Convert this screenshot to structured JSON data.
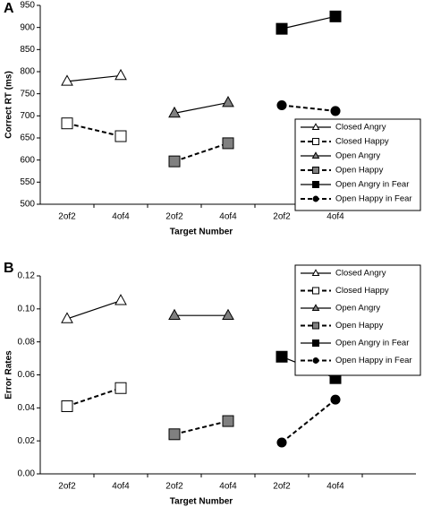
{
  "chart_data": [
    {
      "type": "line",
      "panel": "A",
      "ylabel": "Correct RT (ms)",
      "xlabel": "Target Number",
      "categories": [
        "2of2",
        "4of4",
        "2of2",
        "4of4",
        "2of2",
        "4of4"
      ],
      "ylim": [
        500,
        950
      ],
      "yticks": [
        500,
        550,
        600,
        650,
        700,
        750,
        800,
        850,
        900,
        950
      ],
      "legend": "lower right",
      "series": [
        {
          "name": "Closed Angry",
          "color": "#000000",
          "fill": "#ffffff",
          "marker": "triangle",
          "dash": false,
          "values": [
            778,
            791,
            null,
            null,
            null,
            null
          ]
        },
        {
          "name": "Closed Happy",
          "color": "#000000",
          "fill": "#ffffff",
          "marker": "square",
          "dash": true,
          "values": [
            683,
            654,
            null,
            null,
            null,
            null
          ]
        },
        {
          "name": "Open Angry",
          "color": "#000000",
          "fill": "#808080",
          "marker": "triangle",
          "dash": false,
          "values": [
            null,
            null,
            706,
            730,
            null,
            null
          ]
        },
        {
          "name": "Open Happy",
          "color": "#000000",
          "fill": "#808080",
          "marker": "square",
          "dash": true,
          "values": [
            null,
            null,
            597,
            638,
            null,
            null
          ]
        },
        {
          "name": "Open Angry in Fear",
          "color": "#000000",
          "fill": "#000000",
          "marker": "square",
          "dash": false,
          "values": [
            null,
            null,
            null,
            null,
            897,
            925
          ]
        },
        {
          "name": "Open Happy in Fear",
          "color": "#000000",
          "fill": "#000000",
          "marker": "circle",
          "dash": true,
          "values": [
            null,
            null,
            null,
            null,
            724,
            711
          ]
        }
      ]
    },
    {
      "type": "line",
      "panel": "B",
      "ylabel": "Error Rates",
      "xlabel": "Target Number",
      "categories": [
        "2of2",
        "4of4",
        "2of2",
        "4of4",
        "2of2",
        "4of4"
      ],
      "ylim": [
        0,
        0.12
      ],
      "yticks": [
        {
          "value": 0,
          "label": "0.00"
        },
        0.02,
        0.04,
        0.06,
        0.08,
        {
          "value": 0.1,
          "label": "0.10"
        },
        0.12
      ],
      "legend": "upper right",
      "series": [
        {
          "name": "Closed Angry",
          "color": "#000000",
          "fill": "#ffffff",
          "marker": "triangle",
          "dash": false,
          "values": [
            0.094,
            0.105,
            null,
            null,
            null,
            null
          ]
        },
        {
          "name": "Closed Happy",
          "color": "#000000",
          "fill": "#ffffff",
          "marker": "square",
          "dash": true,
          "values": [
            0.041,
            0.052,
            null,
            null,
            null,
            null
          ]
        },
        {
          "name": "Open Angry",
          "color": "#000000",
          "fill": "#808080",
          "marker": "triangle",
          "dash": false,
          "values": [
            null,
            null,
            0.096,
            0.096,
            null,
            null
          ]
        },
        {
          "name": "Open Happy",
          "color": "#000000",
          "fill": "#808080",
          "marker": "square",
          "dash": true,
          "values": [
            null,
            null,
            0.024,
            0.032,
            null,
            null
          ]
        },
        {
          "name": "Open Angry in Fear",
          "color": "#000000",
          "fill": "#000000",
          "marker": "square",
          "dash": false,
          "values": [
            null,
            null,
            null,
            null,
            0.071,
            0.058
          ]
        },
        {
          "name": "Open Happy in Fear",
          "color": "#000000",
          "fill": "#000000",
          "marker": "circle",
          "dash": true,
          "values": [
            null,
            null,
            null,
            null,
            0.019,
            0.045
          ]
        }
      ]
    }
  ]
}
